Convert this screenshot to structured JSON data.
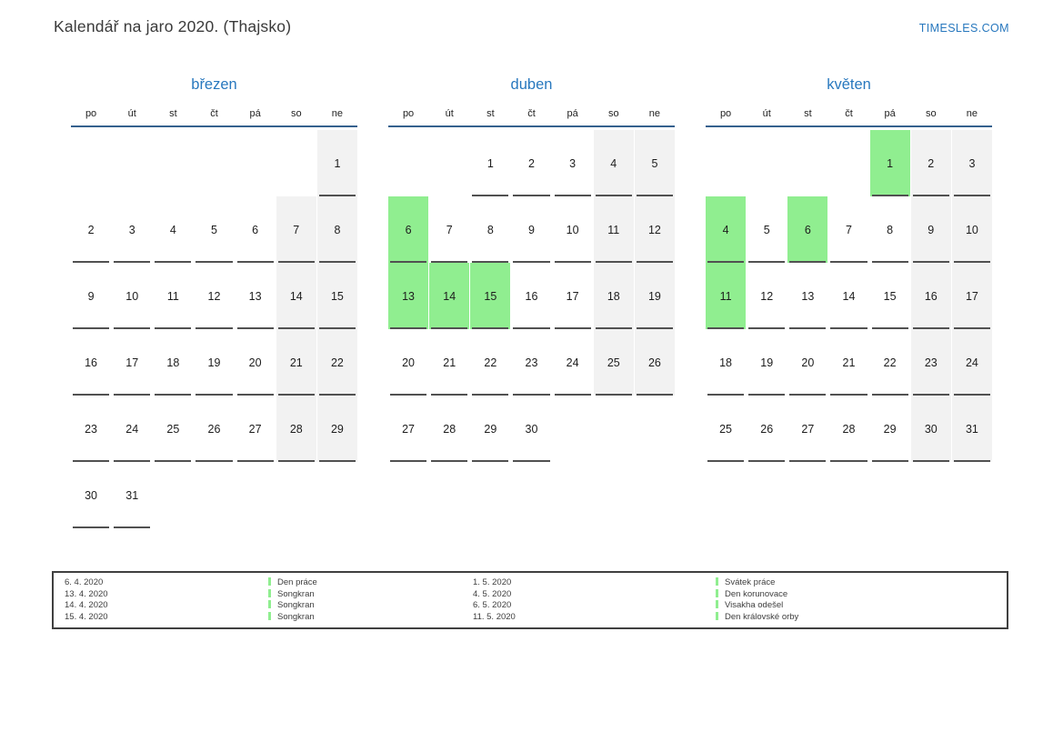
{
  "page": {
    "title": "Kalendář na jaro 2020. (Thajsko)",
    "brand": "TIMESLES.COM"
  },
  "colors": {
    "accent_blue": "#2878be",
    "header_rule_blue": "#35618e",
    "holiday_green": "#90ee90",
    "weekend_gray": "#f2f2f2",
    "cell_underline": "#515151"
  },
  "weekdays": [
    "po",
    "út",
    "st",
    "čt",
    "pá",
    "so",
    "ne"
  ],
  "months": [
    {
      "name": "březen",
      "weeks": [
        [
          null,
          null,
          null,
          null,
          null,
          null,
          1
        ],
        [
          2,
          3,
          4,
          5,
          6,
          7,
          8
        ],
        [
          9,
          10,
          11,
          12,
          13,
          14,
          15
        ],
        [
          16,
          17,
          18,
          19,
          20,
          21,
          22
        ],
        [
          23,
          24,
          25,
          26,
          27,
          28,
          29
        ],
        [
          30,
          31,
          null,
          null,
          null,
          null,
          null
        ]
      ],
      "holidays": []
    },
    {
      "name": "duben",
      "weeks": [
        [
          null,
          null,
          1,
          2,
          3,
          4,
          5
        ],
        [
          6,
          7,
          8,
          9,
          10,
          11,
          12
        ],
        [
          13,
          14,
          15,
          16,
          17,
          18,
          19
        ],
        [
          20,
          21,
          22,
          23,
          24,
          25,
          26
        ],
        [
          27,
          28,
          29,
          30,
          null,
          null,
          null
        ]
      ],
      "holidays": [
        6,
        13,
        14,
        15
      ]
    },
    {
      "name": "květen",
      "weeks": [
        [
          null,
          null,
          null,
          null,
          1,
          2,
          3
        ],
        [
          4,
          5,
          6,
          7,
          8,
          9,
          10
        ],
        [
          11,
          12,
          13,
          14,
          15,
          16,
          17
        ],
        [
          18,
          19,
          20,
          21,
          22,
          23,
          24
        ],
        [
          25,
          26,
          27,
          28,
          29,
          30,
          31
        ]
      ],
      "holidays": [
        1,
        4,
        6,
        11
      ]
    }
  ],
  "legend": {
    "groups": [
      {
        "entries": [
          {
            "date": "6. 4. 2020",
            "name": "Den práce"
          },
          {
            "date": "13. 4. 2020",
            "name": "Songkran"
          },
          {
            "date": "14. 4. 2020",
            "name": "Songkran"
          },
          {
            "date": "15. 4. 2020",
            "name": "Songkran"
          }
        ]
      },
      {
        "entries": [
          {
            "date": "1. 5. 2020",
            "name": "Svátek práce"
          },
          {
            "date": "4. 5. 2020",
            "name": "Den korunovace"
          },
          {
            "date": "6. 5. 2020",
            "name": "Visakha odešel"
          },
          {
            "date": "11. 5. 2020",
            "name": "Den královské orby"
          }
        ]
      }
    ]
  }
}
